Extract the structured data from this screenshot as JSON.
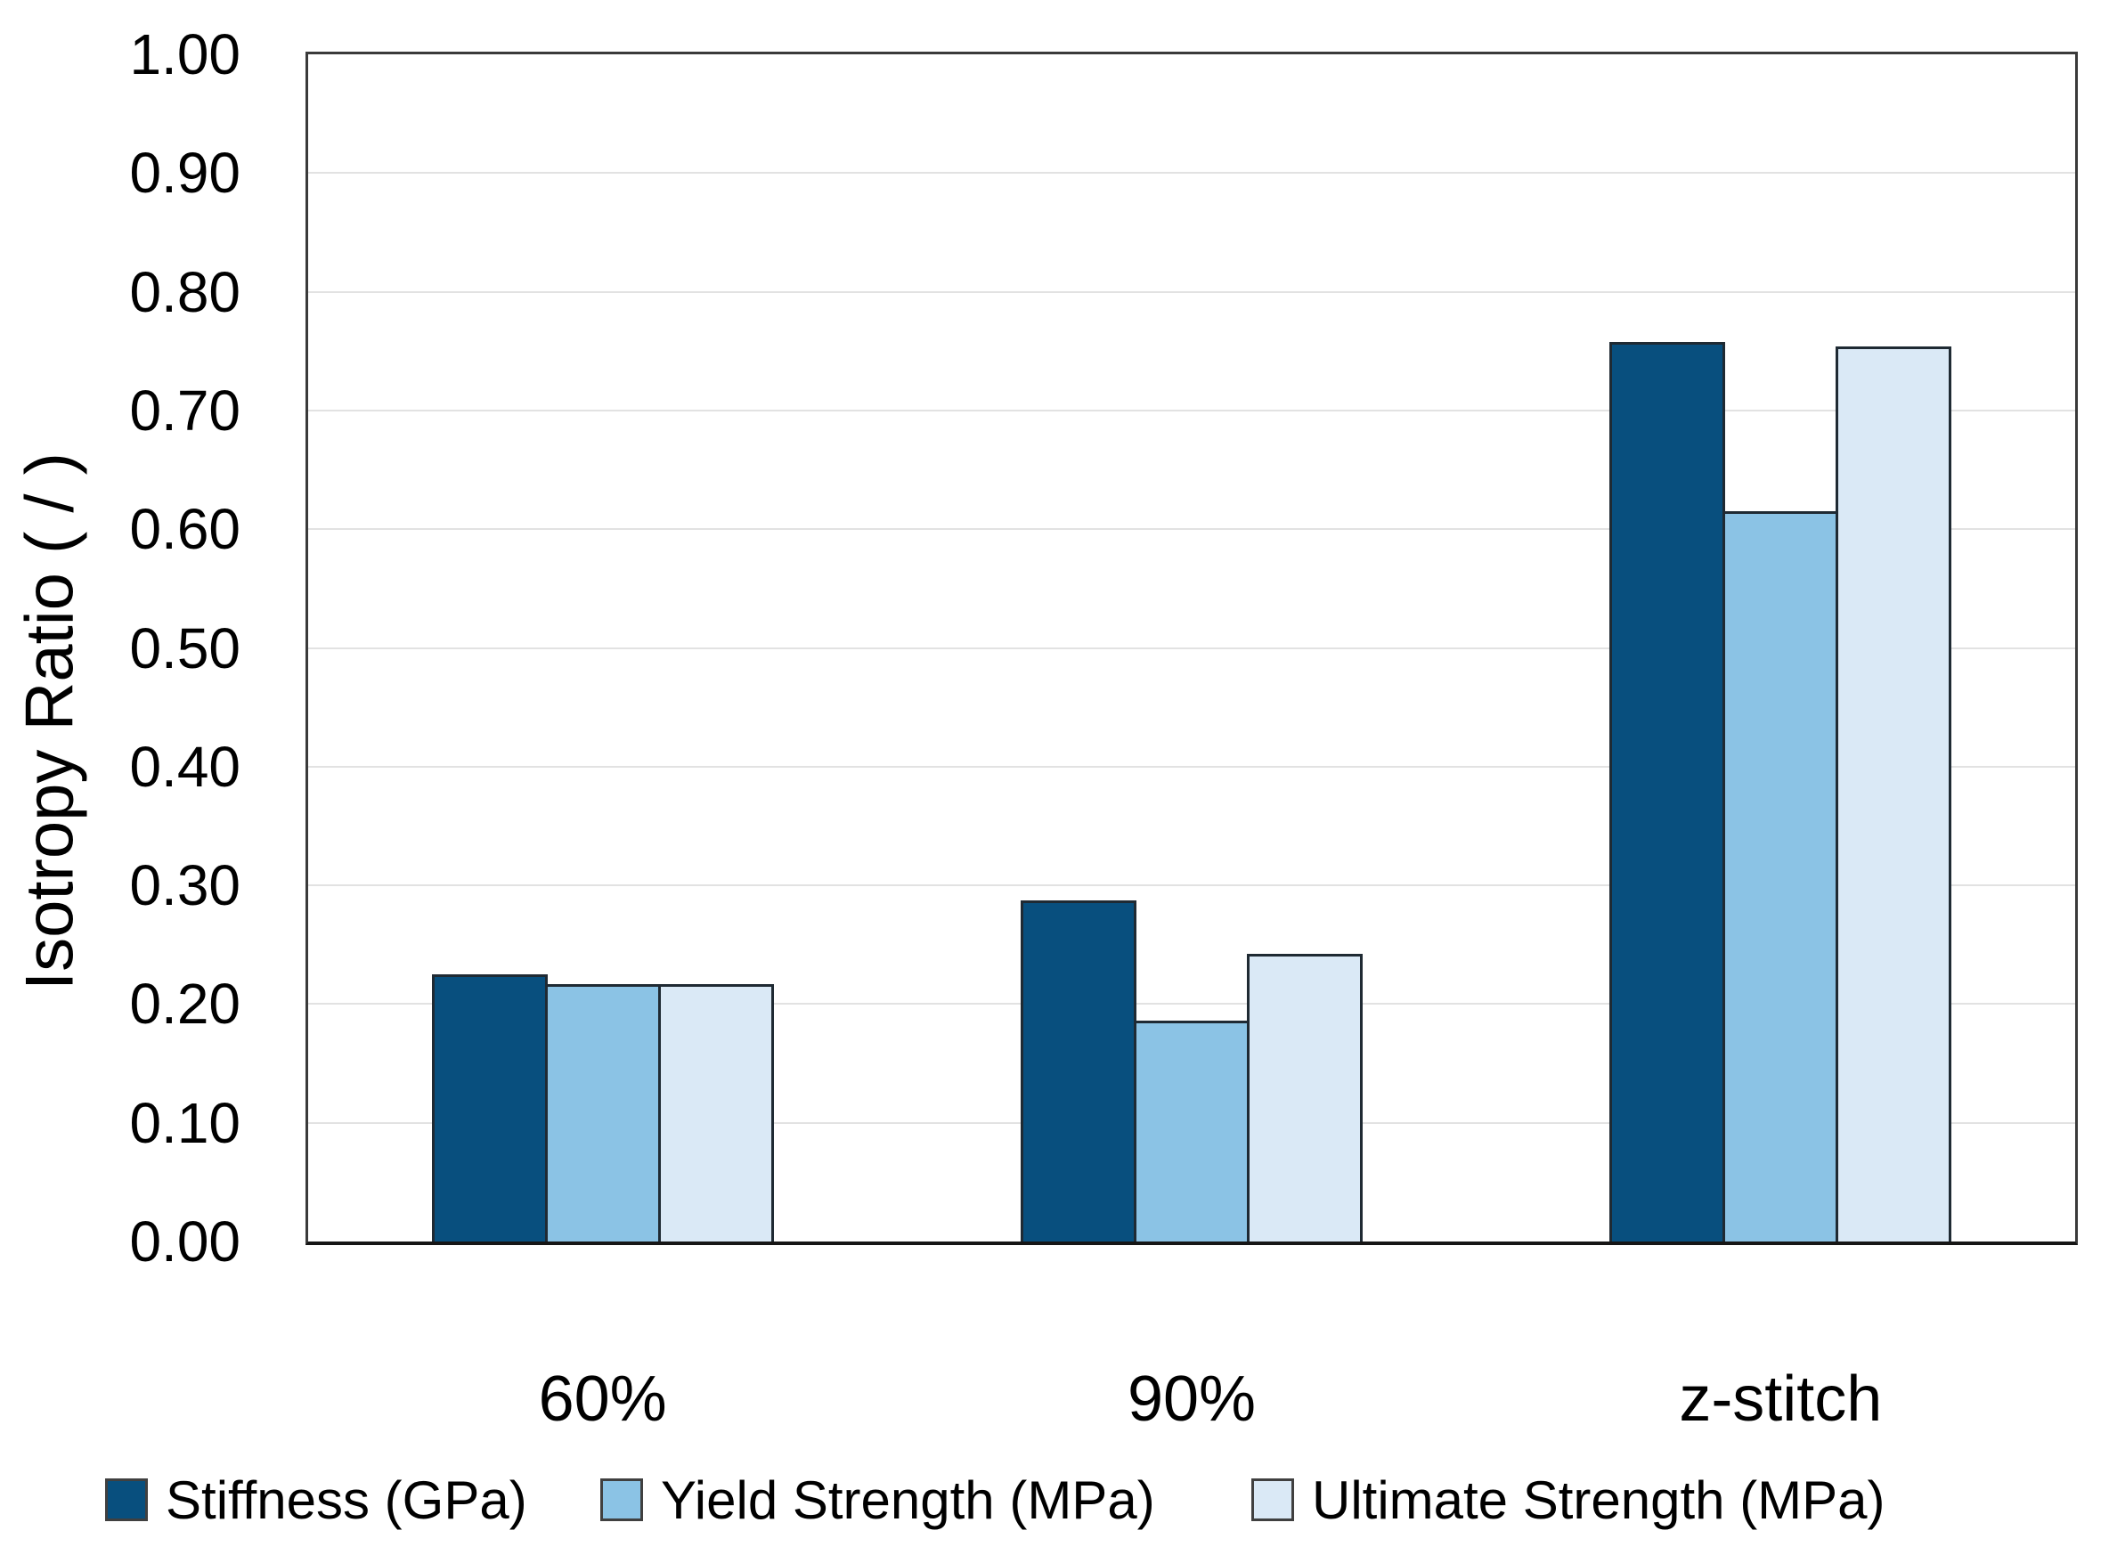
{
  "figure": {
    "background_color": "#ffffff",
    "gridline_color": "#e2e2e2",
    "axis_border_color": "#3a3a3a",
    "bar_border_color": "#1f2a33"
  },
  "y_axis": {
    "title": "Isotropy Ratio ( / )",
    "tick_labels": [
      "0.00",
      "0.10",
      "0.20",
      "0.30",
      "0.40",
      "0.50",
      "0.60",
      "0.70",
      "0.80",
      "0.90",
      "1.00"
    ],
    "min": 0,
    "max": 1,
    "step": 0.1
  },
  "x_axis": {
    "categories": [
      "60%",
      "90%",
      "z-stitch"
    ]
  },
  "legend": {
    "position": "bottom",
    "items": [
      {
        "label": "Stiffness (GPa)",
        "color": "#084F7E"
      },
      {
        "label": "Yield Strength (MPa)",
        "color": "#8BC3E5"
      },
      {
        "label": "Ultimate  Strength (MPa)",
        "color": "#DAE9F6"
      }
    ]
  },
  "chart_data": {
    "type": "bar",
    "title": "",
    "xlabel": "",
    "ylabel": "Isotropy Ratio ( / )",
    "ylim": [
      0,
      1
    ],
    "ytick_step": 0.1,
    "grid": true,
    "legend_position": "bottom",
    "categories": [
      "60%",
      "90%",
      "z-stitch"
    ],
    "series": [
      {
        "name": "Stiffness (GPa)",
        "color": "#084F7E",
        "values": [
          0.225,
          0.287,
          0.758
        ]
      },
      {
        "name": "Yield Strength (MPa)",
        "color": "#8BC3E5",
        "values": [
          0.217,
          0.186,
          0.615
        ]
      },
      {
        "name": "Ultimate  Strength (MPa)",
        "color": "#DAE9F6",
        "values": [
          0.217,
          0.242,
          0.754
        ]
      }
    ]
  }
}
